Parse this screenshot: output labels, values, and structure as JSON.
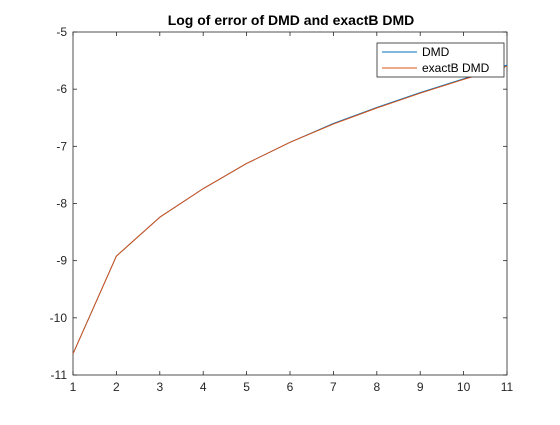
{
  "chart_data": {
    "type": "line",
    "title": "Log of error of DMD and exactB DMD",
    "xlabel": "",
    "ylabel": "",
    "xlim": [
      1,
      11
    ],
    "ylim": [
      -11,
      -5
    ],
    "xticks": [
      1,
      2,
      3,
      4,
      5,
      6,
      7,
      8,
      9,
      10,
      11
    ],
    "yticks": [
      -11,
      -10,
      -9,
      -8,
      -7,
      -6,
      -5
    ],
    "grid": false,
    "legend": "top-right",
    "x": [
      1,
      2,
      3,
      4,
      5,
      6,
      7,
      8,
      9,
      10,
      11
    ],
    "series": [
      {
        "name": "DMD",
        "color": "#0072BD",
        "values": [
          -10.63,
          -8.92,
          -8.24,
          -7.74,
          -7.3,
          -6.93,
          -6.6,
          -6.32,
          -6.06,
          -5.82,
          -5.58
        ]
      },
      {
        "name": "exactB DMD",
        "color": "#D95319",
        "values": [
          -10.63,
          -8.92,
          -8.24,
          -7.74,
          -7.3,
          -6.93,
          -6.61,
          -6.33,
          -6.07,
          -5.83,
          -5.6
        ]
      }
    ]
  }
}
